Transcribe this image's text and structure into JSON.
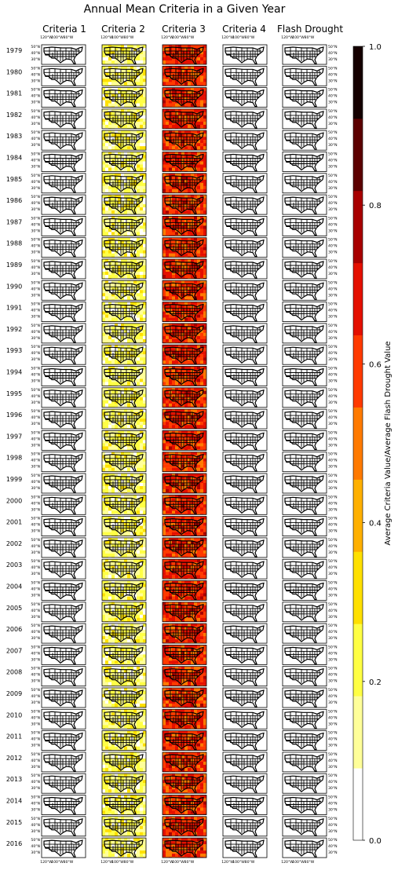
{
  "chart_data": {
    "type": "heatmap",
    "title": "Annual Mean Criteria in a Given Year",
    "columns": [
      "Criteria 1",
      "Criteria 2",
      "Criteria 3",
      "Criteria 4",
      "Flash Drought"
    ],
    "years": [
      "1979",
      "1980",
      "1981",
      "1982",
      "1983",
      "1984",
      "1985",
      "1986",
      "1987",
      "1988",
      "1989",
      "1990",
      "1991",
      "1992",
      "1993",
      "1994",
      "1995",
      "1996",
      "1997",
      "1998",
      "1999",
      "2000",
      "2001",
      "2002",
      "2003",
      "2004",
      "2005",
      "2006",
      "2007",
      "2008",
      "2009",
      "2010",
      "2011",
      "2012",
      "2013",
      "2014",
      "2015",
      "2016"
    ],
    "lon_ticks": [
      "120°W",
      "100°W",
      "80°W"
    ],
    "lat_ticks": [
      "50°N",
      "40°N",
      "30°N"
    ],
    "approx_mean_value": [
      0.0,
      0.18,
      0.62,
      0.0,
      0.0
    ],
    "colorbar": {
      "label": "Average Criteria Value/Average Flash Drought Value",
      "range": [
        0.0,
        1.0
      ],
      "tick_labels": [
        "0.0",
        "0.2",
        "0.4",
        "0.6",
        "0.8",
        "1.0"
      ],
      "ticks": [
        0.0,
        0.2,
        0.4,
        0.6,
        0.8,
        1.0
      ],
      "bands": 11,
      "colors": [
        "#ffffff",
        "#ffff99",
        "#ffff44",
        "#ffe000",
        "#ffb000",
        "#ff7a00",
        "#ff3a00",
        "#e41000",
        "#a80000",
        "#5c0000",
        "#150000"
      ]
    }
  }
}
